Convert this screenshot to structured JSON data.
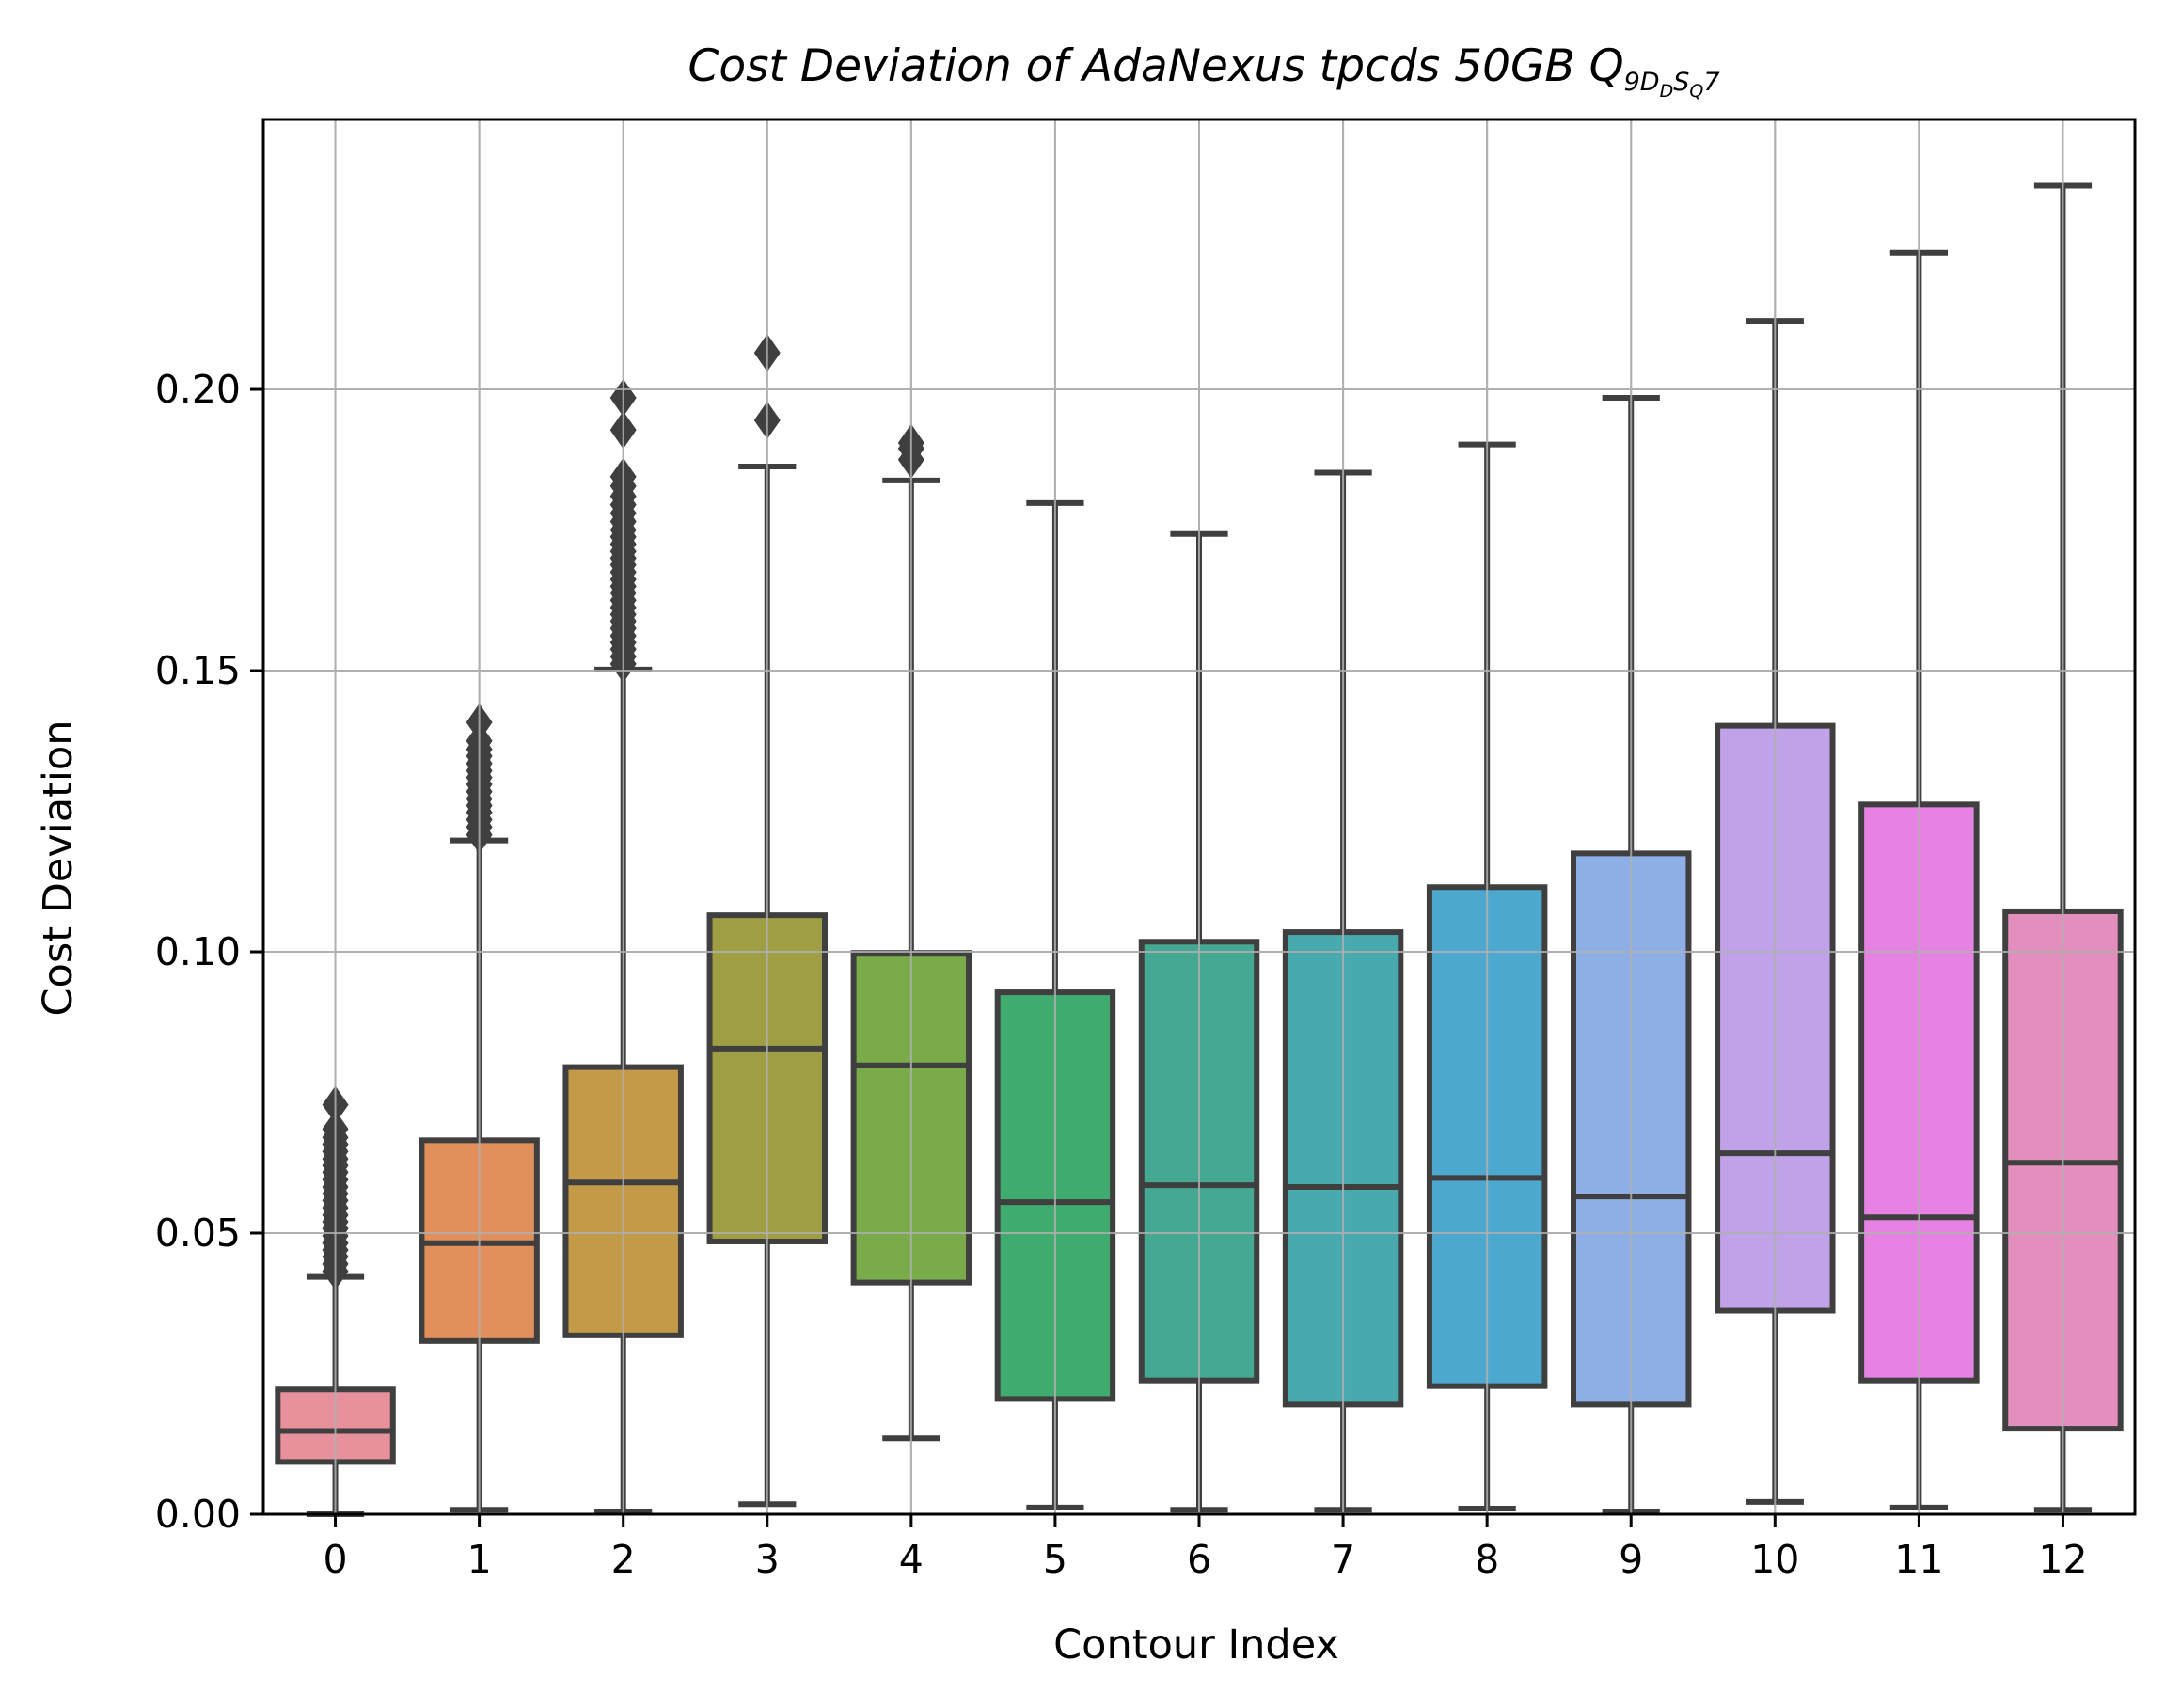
{
  "chart_data": {
    "type": "box",
    "title": "Cost Deviation of AdaNexus tpcds  50GB  Q",
    "title_subscript": "9",
    "title_subscript_parts": [
      {
        "text": "D",
        "sub": "D"
      },
      {
        "text": "S",
        "sub": "Q"
      }
    ],
    "title_subscript_tail": "7",
    "xlabel": "Contour Index",
    "ylabel": "Cost Deviation",
    "ylim": [
      0,
      0.248
    ],
    "yticks": [
      0.0,
      0.05,
      0.1,
      0.15,
      0.2
    ],
    "ytick_labels": [
      "0.00",
      "0.05",
      "0.10",
      "0.15",
      "0.20"
    ],
    "grid": true,
    "categories": [
      "0",
      "1",
      "2",
      "3",
      "4",
      "5",
      "6",
      "7",
      "8",
      "9",
      "10",
      "11",
      "12"
    ],
    "colors": [
      "#e8919c",
      "#e28f5c",
      "#c29a48",
      "#a09e43",
      "#7aab4a",
      "#40ab6e",
      "#44a892",
      "#48aaaf",
      "#4ca8cf",
      "#8eaee6",
      "#c0a2e8",
      "#e582e2",
      "#e38fbe"
    ],
    "boxes": [
      {
        "whislo": 0.0,
        "q1": 0.0093,
        "med": 0.0148,
        "q3": 0.0222,
        "whishi": 0.0422,
        "fliers": [
          0.0432,
          0.0445,
          0.0458,
          0.047,
          0.0482,
          0.0495,
          0.0508,
          0.052,
          0.0532,
          0.0545,
          0.0558,
          0.057,
          0.0582,
          0.0595,
          0.0608,
          0.062,
          0.0632,
          0.0645,
          0.0658,
          0.067,
          0.0685,
          0.0728
        ]
      },
      {
        "whislo": 0.0008,
        "q1": 0.0308,
        "med": 0.0482,
        "q3": 0.0665,
        "whishi": 0.1198,
        "fliers": [
          0.1208,
          0.1222,
          0.1235,
          0.1248,
          0.126,
          0.1272,
          0.1285,
          0.1298,
          0.131,
          0.1322,
          0.1335,
          0.1348,
          0.136,
          0.1375,
          0.1408
        ]
      },
      {
        "whislo": 0.0005,
        "q1": 0.0318,
        "med": 0.059,
        "q3": 0.0795,
        "whishi": 0.1502,
        "fliers": [
          0.1512,
          0.1525,
          0.1538,
          0.155,
          0.1562,
          0.1575,
          0.1588,
          0.16,
          0.1612,
          0.1625,
          0.1638,
          0.165,
          0.1662,
          0.1675,
          0.1688,
          0.17,
          0.1712,
          0.1725,
          0.1738,
          0.175,
          0.1765,
          0.178,
          0.1795,
          0.181,
          0.1828,
          0.1845,
          0.1928,
          0.1985
        ]
      },
      {
        "whislo": 0.0018,
        "q1": 0.0485,
        "med": 0.0828,
        "q3": 0.1065,
        "whishi": 0.1863,
        "fliers": [
          0.1945,
          0.2065
        ]
      },
      {
        "whislo": 0.0135,
        "q1": 0.0412,
        "med": 0.0798,
        "q3": 0.0998,
        "whishi": 0.1838,
        "fliers": [
          0.1875,
          0.1895,
          0.1905
        ]
      },
      {
        "whislo": 0.0012,
        "q1": 0.0205,
        "med": 0.0555,
        "q3": 0.0928,
        "whishi": 0.1798,
        "fliers": []
      },
      {
        "whislo": 0.0008,
        "q1": 0.0238,
        "med": 0.0585,
        "q3": 0.1018,
        "whishi": 0.1743,
        "fliers": []
      },
      {
        "whislo": 0.0008,
        "q1": 0.0195,
        "med": 0.0582,
        "q3": 0.1035,
        "whishi": 0.1852,
        "fliers": []
      },
      {
        "whislo": 0.001,
        "q1": 0.0228,
        "med": 0.0598,
        "q3": 0.1115,
        "whishi": 0.1902,
        "fliers": []
      },
      {
        "whislo": 0.0005,
        "q1": 0.0195,
        "med": 0.0565,
        "q3": 0.1175,
        "whishi": 0.1985,
        "fliers": []
      },
      {
        "whislo": 0.0022,
        "q1": 0.0362,
        "med": 0.0642,
        "q3": 0.1402,
        "whishi": 0.2122,
        "fliers": []
      },
      {
        "whislo": 0.0012,
        "q1": 0.0238,
        "med": 0.0528,
        "q3": 0.1262,
        "whishi": 0.2243,
        "fliers": []
      },
      {
        "whislo": 0.0008,
        "q1": 0.0152,
        "med": 0.0625,
        "q3": 0.1072,
        "whishi": 0.2362,
        "fliers": []
      }
    ]
  }
}
